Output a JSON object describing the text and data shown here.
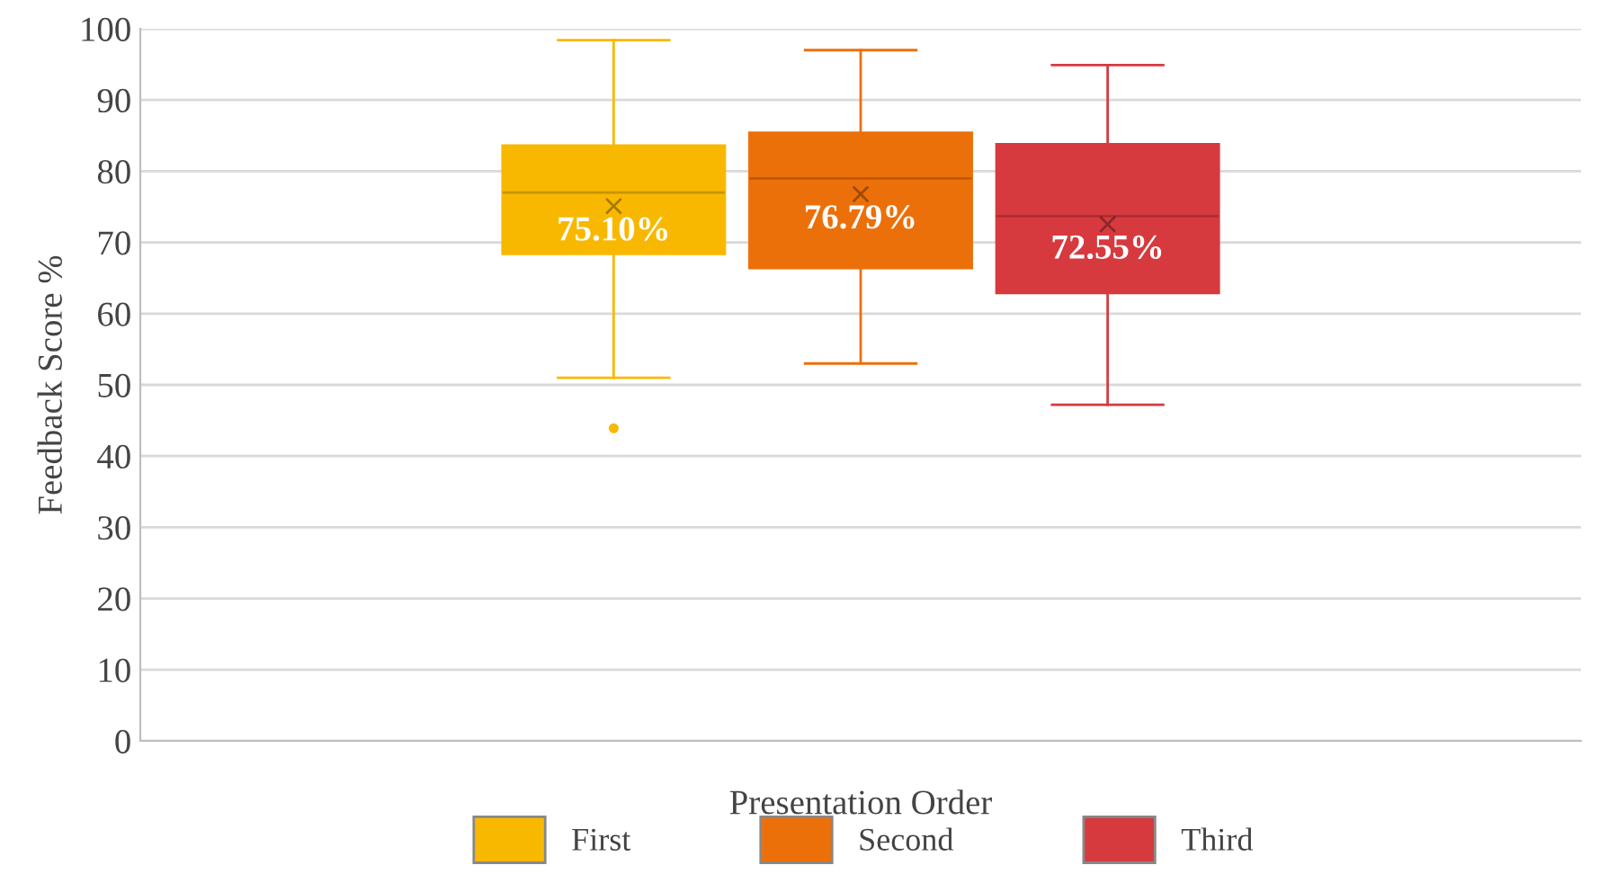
{
  "chart_data": {
    "type": "box",
    "xlabel": "Presentation Order",
    "ylabel": "Feedback Score %",
    "categories": [
      null
    ],
    "ylim": [
      0,
      100
    ],
    "yticks": [
      0,
      10,
      20,
      30,
      40,
      50,
      60,
      70,
      80,
      90,
      100
    ],
    "grid": "y",
    "legend": "bottom",
    "series": [
      {
        "name": "First",
        "color": "#f9b800",
        "boxes": [
          {
            "low": 51.0,
            "q1": 68.4,
            "median": 77.0,
            "q3": 83.6,
            "high": 98.4,
            "mean": 75.1,
            "outliers": [
              43.9
            ]
          }
        ],
        "value_labels": [
          "75.10%"
        ]
      },
      {
        "name": "Second",
        "color": "#ec700a",
        "boxes": [
          {
            "low": 53.0,
            "q1": 66.4,
            "median": 79.0,
            "q3": 85.4,
            "high": 97.0,
            "mean": 76.79
          }
        ],
        "value_labels": [
          "76.79%"
        ]
      },
      {
        "name": "Third",
        "color": "#d63a3f",
        "boxes": [
          {
            "low": 47.2,
            "q1": 62.9,
            "median": 73.7,
            "q3": 83.8,
            "high": 94.9,
            "mean": 72.55
          }
        ],
        "value_labels": [
          "72.55%"
        ]
      }
    ]
  }
}
